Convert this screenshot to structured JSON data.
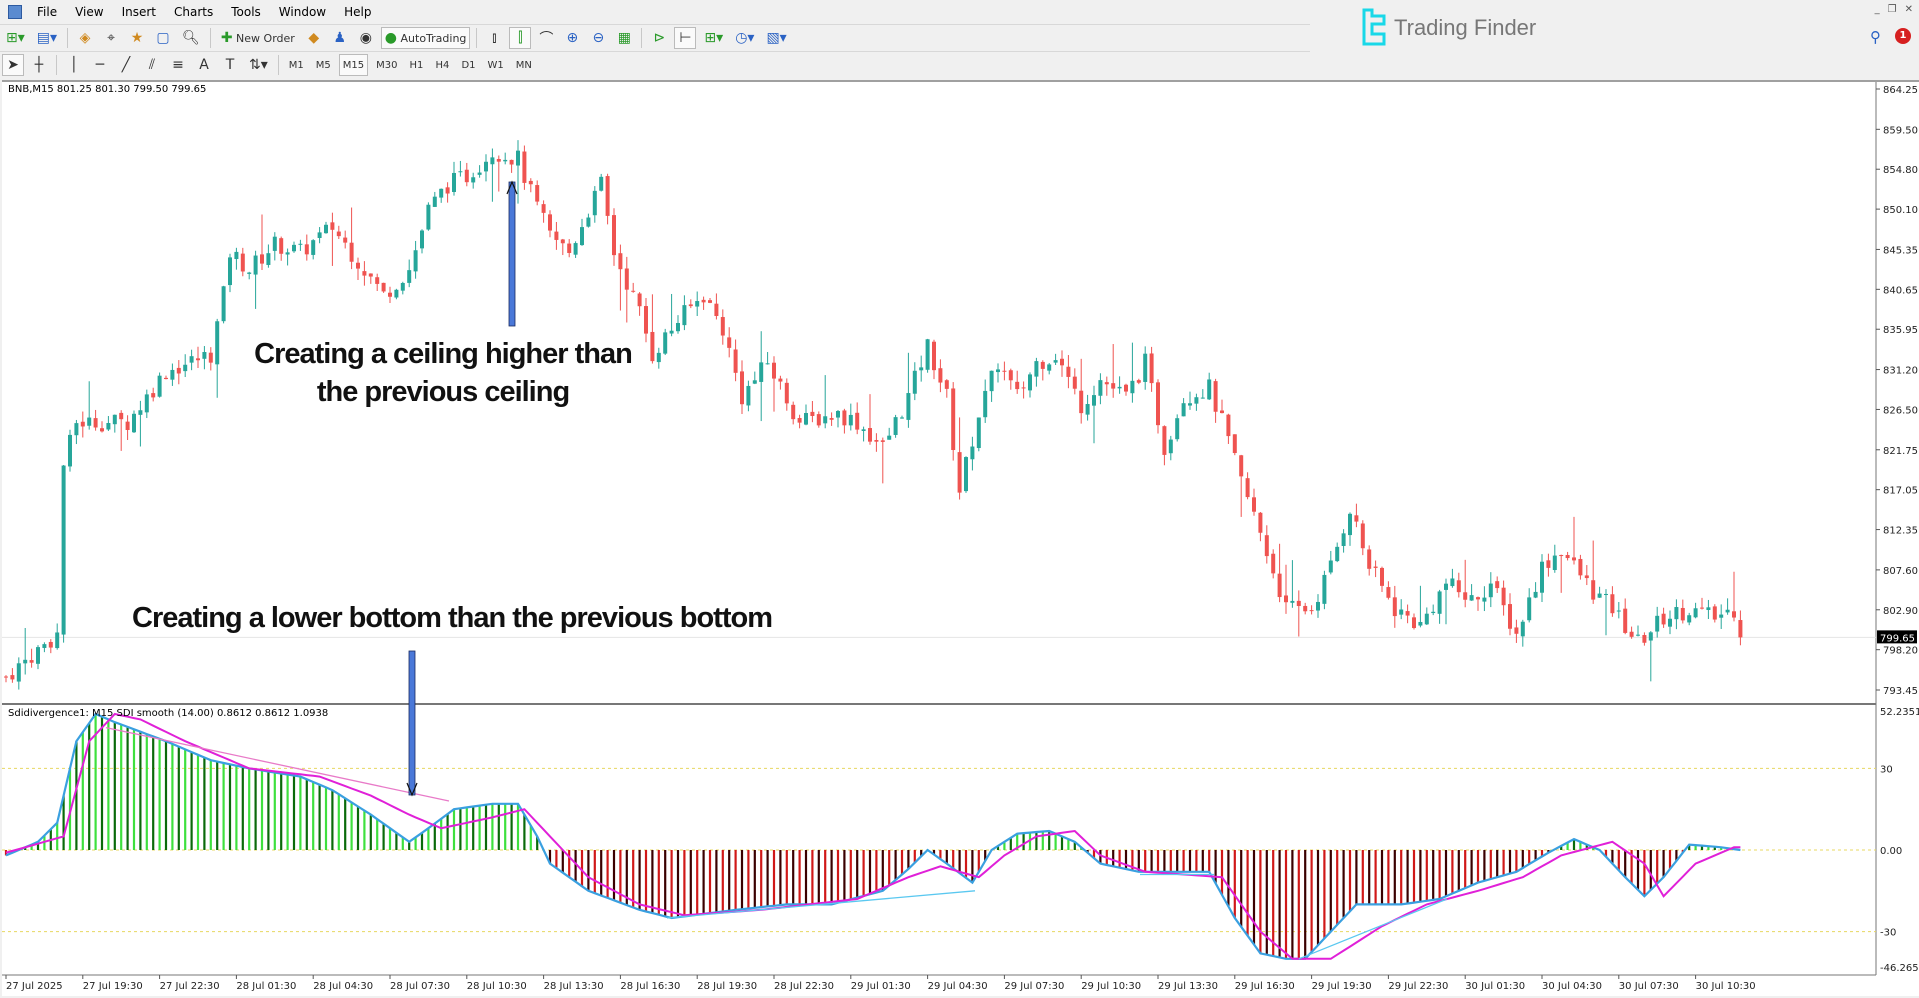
{
  "menu": [
    "File",
    "View",
    "Insert",
    "Charts",
    "Tools",
    "Window",
    "Help"
  ],
  "toolbar": {
    "new_order": "New Order",
    "autotrading": "AutoTrading"
  },
  "timeframes": [
    "M1",
    "M5",
    "M15",
    "M30",
    "H1",
    "H4",
    "D1",
    "W1",
    "MN"
  ],
  "active_timeframe": "M15",
  "brand": "Trading Finder",
  "notification_count": "1",
  "chart": {
    "symbol_info": "BNB,M15  801.25 801.30 799.50 799.65",
    "current_price": "799.65",
    "indicator_info": "Sdidivergence1: M15 SDI smooth (14.00) 0.8612 0.8612 1.0938",
    "price_ticks": [
      "864.25",
      "859.50",
      "854.80",
      "850.10",
      "845.35",
      "840.65",
      "835.95",
      "831.20",
      "826.50",
      "821.75",
      "817.05",
      "812.35",
      "807.60",
      "802.90",
      "798.20",
      "793.45"
    ],
    "indicator_ticks": [
      "52.2351",
      "30",
      "0.00",
      "-30",
      "-46.2654"
    ],
    "time_ticks": [
      "27 Jul 2025",
      "27 Jul 19:30",
      "27 Jul 22:30",
      "28 Jul 01:30",
      "28 Jul 04:30",
      "28 Jul 07:30",
      "28 Jul 10:30",
      "28 Jul 13:30",
      "28 Jul 16:30",
      "28 Jul 19:30",
      "28 Jul 22:30",
      "29 Jul 01:30",
      "29 Jul 04:30",
      "29 Jul 07:30",
      "29 Jul 10:30",
      "29 Jul 13:30",
      "29 Jul 16:30",
      "29 Jul 19:30",
      "29 Jul 22:30",
      "30 Jul 01:30",
      "30 Jul 04:30",
      "30 Jul 07:30",
      "30 Jul 10:30"
    ],
    "annotation_top": [
      "Creating a ceiling higher than",
      "the previous ceiling"
    ],
    "annotation_bottom": "Creating a lower bottom than the previous bottom"
  },
  "chart_data": {
    "type": "candlestick",
    "bars": 272,
    "price_range": [
      793.45,
      864.25
    ],
    "close_anchors": [
      [
        0,
        795
      ],
      [
        8,
        800
      ],
      [
        9,
        820
      ],
      [
        11,
        825
      ],
      [
        19,
        825
      ],
      [
        25,
        831
      ],
      [
        32,
        833
      ],
      [
        34,
        840
      ],
      [
        35,
        845
      ],
      [
        38,
        843
      ],
      [
        42,
        846
      ],
      [
        46,
        845
      ],
      [
        51,
        848
      ],
      [
        55,
        844
      ],
      [
        59,
        840
      ],
      [
        63,
        843
      ],
      [
        66,
        850
      ],
      [
        69,
        853
      ],
      [
        72,
        854
      ],
      [
        76,
        857
      ],
      [
        80,
        856
      ],
      [
        82,
        852
      ],
      [
        85,
        847
      ],
      [
        88,
        845
      ],
      [
        91,
        850
      ],
      [
        93,
        853
      ],
      [
        95,
        845
      ],
      [
        99,
        838
      ],
      [
        101,
        833
      ],
      [
        105,
        837
      ],
      [
        109,
        840
      ],
      [
        112,
        836
      ],
      [
        115,
        828
      ],
      [
        119,
        832
      ],
      [
        124,
        825
      ],
      [
        130,
        826
      ],
      [
        133,
        825
      ],
      [
        137,
        822
      ],
      [
        141,
        828
      ],
      [
        144,
        834
      ],
      [
        147,
        828
      ],
      [
        149,
        817
      ],
      [
        152,
        826
      ],
      [
        155,
        832
      ],
      [
        158,
        828
      ],
      [
        161,
        832
      ],
      [
        164,
        833
      ],
      [
        168,
        827
      ],
      [
        171,
        830
      ],
      [
        175,
        828
      ],
      [
        178,
        832
      ],
      [
        181,
        822
      ],
      [
        184,
        828
      ],
      [
        188,
        829
      ],
      [
        190,
        825
      ],
      [
        193,
        818
      ],
      [
        196,
        812
      ],
      [
        200,
        803
      ],
      [
        204,
        803
      ],
      [
        207,
        808
      ],
      [
        210,
        815
      ],
      [
        213,
        808
      ],
      [
        217,
        803
      ],
      [
        221,
        801
      ],
      [
        225,
        806
      ],
      [
        229,
        804
      ],
      [
        232,
        806
      ],
      [
        236,
        800
      ],
      [
        240,
        808
      ],
      [
        243,
        810
      ],
      [
        248,
        805
      ],
      [
        251,
        803
      ],
      [
        255,
        799
      ],
      [
        259,
        802
      ],
      [
        263,
        803
      ],
      [
        267,
        802
      ],
      [
        270,
        803
      ],
      [
        271,
        799.65
      ]
    ],
    "indicator": {
      "range": [
        -46.2654,
        52.2351
      ],
      "levels": [
        30,
        0,
        -30
      ],
      "histogram_anchors": [
        [
          0,
          -2
        ],
        [
          5,
          3
        ],
        [
          8,
          10
        ],
        [
          11,
          40
        ],
        [
          14,
          50
        ],
        [
          17,
          47
        ],
        [
          25,
          40
        ],
        [
          32,
          33
        ],
        [
          38,
          30
        ],
        [
          46,
          27
        ],
        [
          51,
          22
        ],
        [
          57,
          13
        ],
        [
          63,
          3
        ],
        [
          66,
          8
        ],
        [
          70,
          15
        ],
        [
          76,
          17
        ],
        [
          80,
          17
        ],
        [
          83,
          5
        ],
        [
          85,
          -5
        ],
        [
          91,
          -15
        ],
        [
          99,
          -22
        ],
        [
          104,
          -25
        ],
        [
          114,
          -22
        ],
        [
          122,
          -20
        ],
        [
          129,
          -20
        ],
        [
          137,
          -15
        ],
        [
          141,
          -7
        ],
        [
          144,
          0
        ],
        [
          147,
          -5
        ],
        [
          151,
          -12
        ],
        [
          154,
          0
        ],
        [
          158,
          6
        ],
        [
          163,
          7
        ],
        [
          167,
          3
        ],
        [
          171,
          -5
        ],
        [
          177,
          -8
        ],
        [
          188,
          -8
        ],
        [
          192,
          -25
        ],
        [
          196,
          -38
        ],
        [
          200,
          -40
        ],
        [
          203,
          -40
        ],
        [
          207,
          -30
        ],
        [
          211,
          -20
        ],
        [
          218,
          -20
        ],
        [
          224,
          -18
        ],
        [
          230,
          -12
        ],
        [
          236,
          -8
        ],
        [
          241,
          -1
        ],
        [
          245,
          4
        ],
        [
          249,
          0
        ],
        [
          253,
          -10
        ],
        [
          256,
          -17
        ],
        [
          259,
          -10
        ],
        [
          263,
          2
        ],
        [
          268,
          1
        ],
        [
          271,
          0
        ]
      ],
      "signal_anchors": [
        [
          0,
          -1
        ],
        [
          9,
          5
        ],
        [
          13,
          40
        ],
        [
          17,
          50
        ],
        [
          21,
          48
        ],
        [
          28,
          40
        ],
        [
          38,
          30
        ],
        [
          49,
          27
        ],
        [
          57,
          20
        ],
        [
          63,
          13
        ],
        [
          68,
          8
        ],
        [
          76,
          12
        ],
        [
          81,
          15
        ],
        [
          85,
          5
        ],
        [
          91,
          -10
        ],
        [
          99,
          -20
        ],
        [
          106,
          -24
        ],
        [
          118,
          -22
        ],
        [
          133,
          -18
        ],
        [
          141,
          -10
        ],
        [
          146,
          -6
        ],
        [
          152,
          -10
        ],
        [
          156,
          -2
        ],
        [
          161,
          5
        ],
        [
          167,
          7
        ],
        [
          171,
          -2
        ],
        [
          178,
          -8
        ],
        [
          190,
          -10
        ],
        [
          196,
          -30
        ],
        [
          201,
          -40
        ],
        [
          207,
          -40
        ],
        [
          215,
          -28
        ],
        [
          222,
          -20
        ],
        [
          230,
          -15
        ],
        [
          237,
          -10
        ],
        [
          243,
          -2
        ],
        [
          251,
          3
        ],
        [
          256,
          -5
        ],
        [
          259,
          -17
        ],
        [
          264,
          -5
        ],
        [
          270,
          1
        ]
      ]
    }
  },
  "colors": {
    "up": "#26a69a",
    "down": "#ef5350",
    "hist_up": "#3ee03e",
    "hist_up_dark": "#0a6a0a",
    "hist_dn": "#d01818",
    "hist_dn_dark": "#3a0000",
    "main_line": "#3aa0e0",
    "signal": "#e020d8",
    "level": "#e8d860"
  }
}
